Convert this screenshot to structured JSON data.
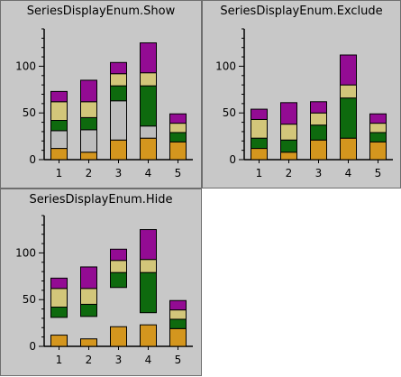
{
  "colors": {
    "panel_bg": "#c8c8c8",
    "axis": "#000000",
    "segment_outline": "#000000",
    "series": [
      "#d4961e",
      "#bdbdbd",
      "#0e6a0e",
      "#d2c67a",
      "#930b93"
    ]
  },
  "chart_data": [
    {
      "type": "bar",
      "stacked": true,
      "title": "SeriesDisplayEnum.Show",
      "categories": [
        "1",
        "2",
        "3",
        "4",
        "5"
      ],
      "ylim": [
        0,
        140
      ],
      "yticks": [
        0,
        50,
        100
      ],
      "series": [
        {
          "values": [
            12,
            8,
            21,
            23,
            19
          ]
        },
        {
          "values": [
            19,
            24,
            42,
            13,
            0
          ]
        },
        {
          "values": [
            11,
            13,
            16,
            43,
            10
          ]
        },
        {
          "values": [
            20,
            17,
            13,
            14,
            10
          ]
        },
        {
          "values": [
            11,
            23,
            12,
            32,
            10
          ]
        }
      ]
    },
    {
      "type": "bar",
      "stacked": true,
      "title": "SeriesDisplayEnum.Exclude",
      "categories": [
        "1",
        "2",
        "3",
        "4",
        "5"
      ],
      "ylim": [
        0,
        140
      ],
      "yticks": [
        0,
        50,
        100
      ],
      "series": [
        {
          "values": [
            12,
            8,
            21,
            23,
            19
          ]
        },
        {
          "values": [
            11,
            13,
            16,
            43,
            10
          ]
        },
        {
          "values": [
            20,
            17,
            13,
            14,
            10
          ]
        },
        {
          "values": [
            11,
            23,
            12,
            32,
            10
          ]
        }
      ]
    },
    {
      "type": "bar",
      "stacked": true,
      "title": "SeriesDisplayEnum.Hide",
      "categories": [
        "1",
        "2",
        "3",
        "4",
        "5"
      ],
      "ylim": [
        0,
        140
      ],
      "yticks": [
        0,
        50,
        100
      ],
      "series": [
        {
          "values": [
            12,
            8,
            21,
            23,
            19
          ]
        },
        {
          "values": [
            19,
            24,
            42,
            13,
            0
          ],
          "hidden": true
        },
        {
          "values": [
            11,
            13,
            16,
            43,
            10
          ]
        },
        {
          "values": [
            20,
            17,
            13,
            14,
            10
          ]
        },
        {
          "values": [
            11,
            23,
            12,
            32,
            10
          ]
        }
      ]
    }
  ]
}
